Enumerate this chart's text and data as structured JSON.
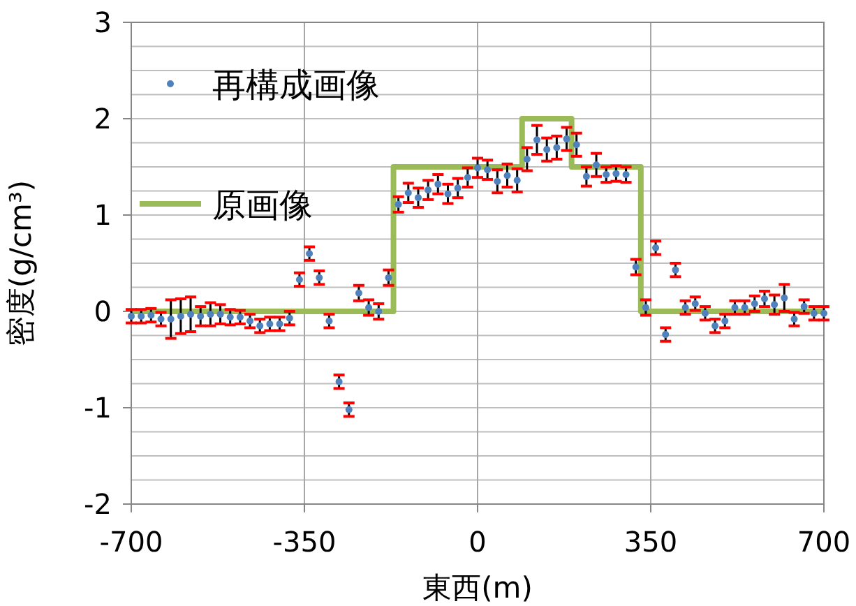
{
  "chart_data": {
    "type": "scatter",
    "xlabel": "東西(m)",
    "ylabel": "密度(g/cm³)",
    "xlim": [
      -700,
      700
    ],
    "ylim": [
      -2,
      3
    ],
    "xticks": [
      -700,
      -350,
      0,
      350,
      700
    ],
    "yticks": [
      -2,
      {
        "value": -1.75,
        "label": null
      },
      {
        "value": -1.5,
        "label": null
      },
      {
        "value": -1.25,
        "label": null
      },
      -1,
      {
        "value": -0.75,
        "label": null
      },
      {
        "value": -0.5,
        "label": null
      },
      {
        "value": -0.25,
        "label": null
      },
      0,
      {
        "value": 0.25,
        "label": null
      },
      {
        "value": 0.5,
        "label": null
      },
      {
        "value": 0.75,
        "label": null
      },
      1,
      {
        "value": 1.25,
        "label": null
      },
      {
        "value": 1.5,
        "label": null
      },
      {
        "value": 1.75,
        "label": null
      },
      2,
      {
        "value": 2.25,
        "label": null
      },
      {
        "value": 2.5,
        "label": null
      },
      {
        "value": 2.75,
        "label": null
      },
      3
    ],
    "grid": true,
    "legend": "top left",
    "series": [
      {
        "name": "再構成画像",
        "marker": "circle",
        "color": "#4f81bd",
        "x": [
          -700,
          -680,
          -660,
          -640,
          -620,
          -600,
          -580,
          -560,
          -540,
          -520,
          -500,
          -480,
          -460,
          -440,
          -420,
          -400,
          -380,
          -360,
          -340,
          -320,
          -300,
          -280,
          -260,
          -240,
          -220,
          -200,
          -180,
          -160,
          -140,
          -120,
          -100,
          -80,
          -60,
          -40,
          -20,
          0,
          20,
          40,
          60,
          80,
          100,
          120,
          140,
          160,
          180,
          200,
          220,
          240,
          260,
          280,
          300,
          320,
          340,
          360,
          380,
          400,
          420,
          440,
          460,
          480,
          500,
          520,
          540,
          560,
          580,
          600,
          620,
          640,
          660,
          680,
          700
        ],
        "values": [
          -0.05,
          -0.05,
          -0.04,
          -0.08,
          -0.08,
          -0.05,
          -0.03,
          -0.05,
          -0.03,
          -0.03,
          -0.06,
          -0.06,
          -0.1,
          -0.15,
          -0.13,
          -0.13,
          -0.07,
          0.33,
          0.6,
          0.35,
          -0.1,
          -0.73,
          -1.02,
          0.19,
          0.04,
          0.0,
          0.35,
          1.11,
          1.23,
          1.18,
          1.26,
          1.32,
          1.22,
          1.28,
          1.39,
          1.49,
          1.47,
          1.35,
          1.41,
          1.36,
          1.58,
          1.78,
          1.68,
          1.7,
          1.79,
          1.73,
          1.4,
          1.52,
          1.42,
          1.43,
          1.42,
          0.46,
          0.04,
          0.66,
          -0.24,
          0.43,
          0.04,
          0.08,
          -0.02,
          -0.15,
          -0.1,
          0.04,
          0.04,
          0.08,
          0.13,
          0.07,
          0.14,
          -0.08,
          0.05,
          -0.02,
          -0.02
        ],
        "errors": [
          0.07,
          0.07,
          0.07,
          0.07,
          0.2,
          0.18,
          0.18,
          0.1,
          0.12,
          0.1,
          0.08,
          0.07,
          0.07,
          0.07,
          0.07,
          0.07,
          0.07,
          0.07,
          0.07,
          0.07,
          0.07,
          0.07,
          0.07,
          0.08,
          0.08,
          0.08,
          0.08,
          0.08,
          0.1,
          0.1,
          0.1,
          0.1,
          0.1,
          0.1,
          0.1,
          0.1,
          0.1,
          0.12,
          0.12,
          0.12,
          0.12,
          0.15,
          0.12,
          0.12,
          0.12,
          0.12,
          0.1,
          0.12,
          0.08,
          0.08,
          0.08,
          0.08,
          0.08,
          0.07,
          0.07,
          0.07,
          0.07,
          0.07,
          0.07,
          0.07,
          0.07,
          0.07,
          0.07,
          0.08,
          0.08,
          0.1,
          0.14,
          0.07,
          0.07,
          0.07,
          0.07
        ]
      },
      {
        "name": "原画像",
        "type": "line",
        "color": "#9bbb59",
        "x": [
          -700,
          -170,
          -170,
          90,
          90,
          190,
          190,
          330,
          330,
          700
        ],
        "values": [
          0,
          0,
          1.5,
          1.5,
          2,
          2,
          1.5,
          1.5,
          0,
          0
        ]
      }
    ]
  }
}
